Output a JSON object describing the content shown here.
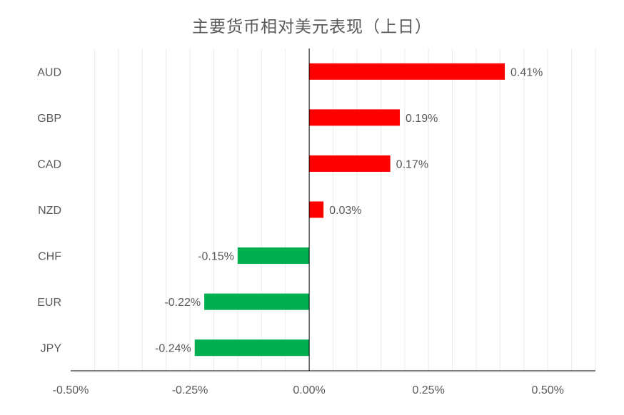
{
  "chart_data": {
    "type": "bar",
    "orientation": "horizontal",
    "title": "主要货币相对美元表现（上日）",
    "xlabel": "",
    "ylabel": "",
    "categories": [
      "AUD",
      "GBP",
      "CAD",
      "NZD",
      "CHF",
      "EUR",
      "JPY"
    ],
    "values": [
      0.41,
      0.19,
      0.17,
      0.03,
      -0.15,
      -0.22,
      -0.24
    ],
    "data_labels": [
      "0.41%",
      "0.19%",
      "0.17%",
      "0.03%",
      "-0.15%",
      "-0.22%",
      "-0.24%"
    ],
    "xlim": [
      -0.5,
      0.6
    ],
    "x_ticks": [
      -0.5,
      -0.25,
      0.0,
      0.25,
      0.5
    ],
    "x_tick_labels": [
      "-0.50%",
      "-0.25%",
      "0.00%",
      "0.25%",
      "0.50%"
    ],
    "x_minor_grid_step": 0.05,
    "grid": true,
    "legend": "none",
    "colors": {
      "positive": "#FF0000",
      "negative": "#00B050",
      "text": "#595959",
      "axis": "#000000",
      "grid": "#EBEBEB"
    }
  }
}
